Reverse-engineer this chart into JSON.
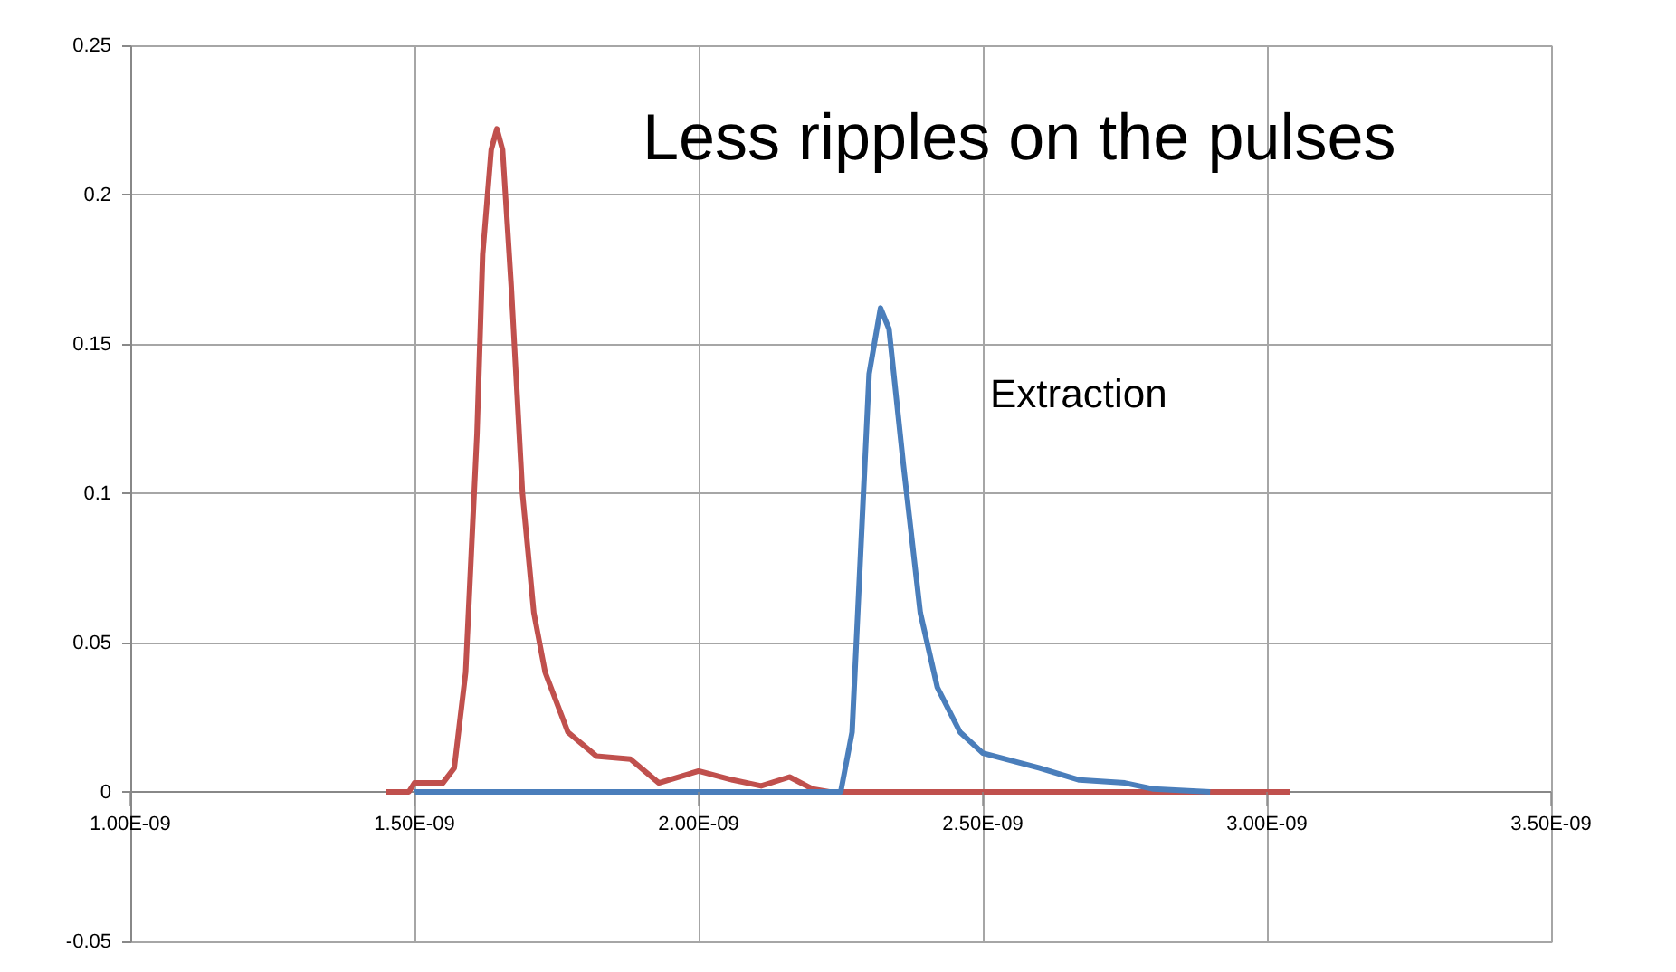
{
  "chart_data": {
    "type": "line",
    "xlim": [
      1e-09,
      3.5e-09
    ],
    "ylim": [
      -0.05,
      0.25
    ],
    "xticks": [
      {
        "value": 1e-09,
        "label": "1.00E-09"
      },
      {
        "value": 1.5e-09,
        "label": "1.50E-09"
      },
      {
        "value": 2e-09,
        "label": "2.00E-09"
      },
      {
        "value": 2.5e-09,
        "label": "2.50E-09"
      },
      {
        "value": 3e-09,
        "label": "3.00E-09"
      },
      {
        "value": 3.5e-09,
        "label": "3.50E-09"
      }
    ],
    "yticks": [
      -0.05,
      {
        "value": 0,
        "label": "0"
      },
      0.05,
      {
        "value": 0.1,
        "label": "0.1"
      },
      0.15,
      {
        "value": 0.2,
        "label": "0.2"
      },
      0.25
    ],
    "grid": true,
    "legend": false,
    "marker": "none",
    "line_style": "solid",
    "annotations": [
      "Less ripples on the pulses",
      "Extraction"
    ],
    "series": [
      {
        "color": "#c0504d",
        "x": [
          1.45e-09,
          1.49e-09,
          1.5e-09,
          1.55e-09,
          1.57e-09,
          1.59e-09,
          1.6e-09,
          1.61e-09,
          1.62e-09,
          1.635e-09,
          1.645e-09,
          1.655e-09,
          1.67e-09,
          1.69e-09,
          1.71e-09,
          1.73e-09,
          1.77e-09,
          1.82e-09,
          1.88e-09,
          1.93e-09,
          2e-09,
          2.06e-09,
          2.11e-09,
          2.16e-09,
          2.2e-09,
          2.23e-09,
          3.04e-09
        ],
        "values": [
          0,
          0,
          0.003,
          0.003,
          0.008,
          0.04,
          0.08,
          0.12,
          0.18,
          0.215,
          0.222,
          0.215,
          0.17,
          0.1,
          0.06,
          0.04,
          0.02,
          0.012,
          0.011,
          0.003,
          0.007,
          0.004,
          0.002,
          0.005,
          0.001,
          0,
          0
        ]
      },
      {
        "color": "#4a7ebb",
        "x": [
          1.5e-09,
          2.25e-09,
          2.27e-09,
          2.285e-09,
          2.3e-09,
          2.32e-09,
          2.335e-09,
          2.36e-09,
          2.39e-09,
          2.42e-09,
          2.46e-09,
          2.5e-09,
          2.6e-09,
          2.67e-09,
          2.75e-09,
          2.8e-09,
          2.9e-09
        ],
        "values": [
          0,
          0,
          0.02,
          0.08,
          0.14,
          0.162,
          0.155,
          0.11,
          0.06,
          0.035,
          0.02,
          0.013,
          0.008,
          0.004,
          0.003,
          0.001,
          0
        ]
      }
    ]
  }
}
